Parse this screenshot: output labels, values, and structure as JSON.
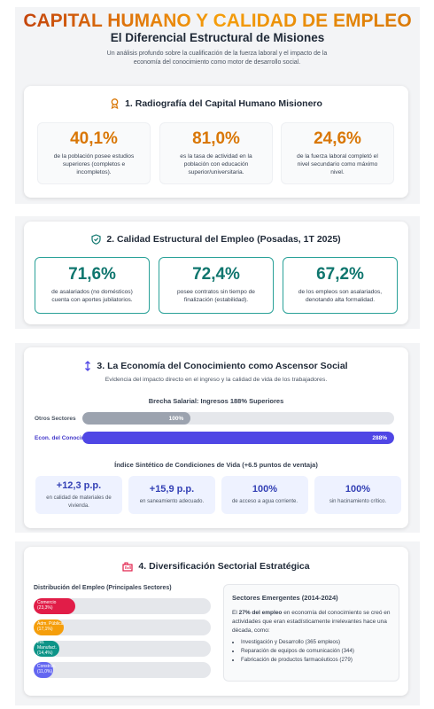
{
  "header": {
    "title": "CAPITAL HUMANO Y CALIDAD DE EMPLEO",
    "subtitle": "El Diferencial Estructural de Misiones",
    "description": "Un análisis profundo sobre la cualificación de la fuerza laboral y el impacto de la economía del conocimiento como motor de desarrollo social."
  },
  "section1": {
    "title": "1. Radiografía del Capital Humano Misionero",
    "stats": [
      {
        "value": "40,1%",
        "text": "de la población posee estudios superiores (completos e incompletos)."
      },
      {
        "value": "81,0%",
        "text": "es la tasa de actividad en la población con educación superior/universitaria."
      },
      {
        "value": "24,6%",
        "text": "de la fuerza laboral completó el nivel secundario como máximo nivel."
      }
    ]
  },
  "section2": {
    "title": "2. Calidad Estructural del Empleo (Posadas, 1T 2025)",
    "stats": [
      {
        "value": "71,6%",
        "text": "de asalariados (no domésticos) cuenta con aportes jubilatorios."
      },
      {
        "value": "72,4%",
        "text": "posee contratos sin tiempo de finalización (estabilidad)."
      },
      {
        "value": "67,2%",
        "text": "de los empleos son asalariados, denotando alta formalidad."
      }
    ]
  },
  "section3": {
    "title": "3. La Economía del Conocimiento como Ascensor Social",
    "subtitle": "Evidencia del impacto directo en el ingreso y la calidad de vida de los trabajadores.",
    "salary_chart": {
      "type": "bar",
      "title": "Brecha Salarial: Ingresos 188% Superiores",
      "categories": [
        "Otros Sectores",
        "Econ. del Conocimiento"
      ],
      "values": [
        100,
        288
      ],
      "value_labels": [
        "100%",
        "288%"
      ],
      "colors": [
        "#9ca3af",
        "#4f46e5"
      ],
      "label_colors": [
        "#4b5563",
        "#4338ca"
      ],
      "xlim": [
        0,
        288
      ]
    },
    "index_title": "Índice Sintético de Condiciones de Vida (+6.5 puntos de ventaja)",
    "index_stats": [
      {
        "value": "+12,3 p.p.",
        "text": "en calidad de materiales de vivienda."
      },
      {
        "value": "+15,9 p.p.",
        "text": "en saneamiento adecuado."
      },
      {
        "value": "100%",
        "text": "de acceso a agua corriente."
      },
      {
        "value": "100%",
        "text": "sin hacinamiento crítico."
      }
    ]
  },
  "section4": {
    "title": "4. Diversificación Sectorial Estratégica",
    "sector_chart": {
      "type": "bar",
      "title": "Distribución del Empleo (Principales Sectores)",
      "categories": [
        "Comercio",
        "Adm. Pública",
        "Ind. Manufact.",
        "Construc."
      ],
      "values": [
        23.3,
        17.1,
        14.4,
        11.0
      ],
      "value_labels": [
        "(23,3%)",
        "(17,1%)",
        "(14,4%)",
        "(11,0%)"
      ],
      "colors": [
        "#e11d48",
        "#f59e0b",
        "#0d9488",
        "#6366f1"
      ],
      "xlim": [
        0,
        100
      ]
    },
    "emerging": {
      "title": "Sectores Emergentes (2014-2024)",
      "text_before": "El",
      "highlight": "27% del empleo",
      "text_after": "en economía del conocimiento se creó en actividades que eran estadísticamente irrelevantes hace una década, como:",
      "items": [
        "Investigación y Desarrollo (365 empleos)",
        "Reparación de equipos de comunicación (344)",
        "Fabricación de productos farmacéuticos (279)"
      ]
    }
  }
}
